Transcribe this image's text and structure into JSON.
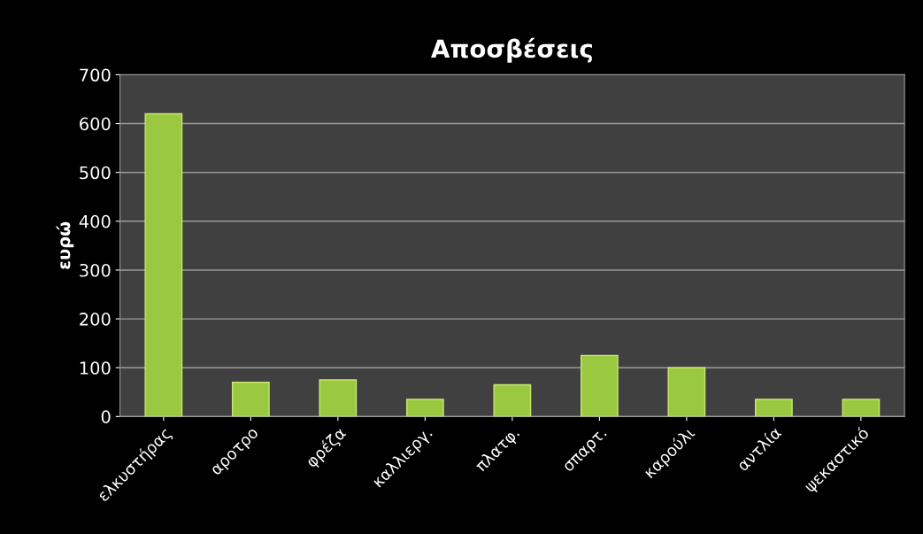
{
  "chart_data": {
    "type": "bar",
    "title": "Αποσβέσεις",
    "ylabel": "ευρώ",
    "categories": [
      "ελκυστήρας",
      "αροτρο",
      "φρέζα",
      "καλλιεργ.",
      "πλατφ.",
      "σπαρτ.",
      "καρούλι",
      "αντλία",
      "ψεκαστικό"
    ],
    "values": [
      620,
      70,
      75,
      35,
      65,
      125,
      100,
      35,
      35
    ],
    "color": "#9ac840",
    "ylim": [
      0,
      700
    ],
    "yticks": [
      0,
      100,
      200,
      300,
      400,
      500,
      600,
      700
    ],
    "grid": "y",
    "legend": false
  }
}
